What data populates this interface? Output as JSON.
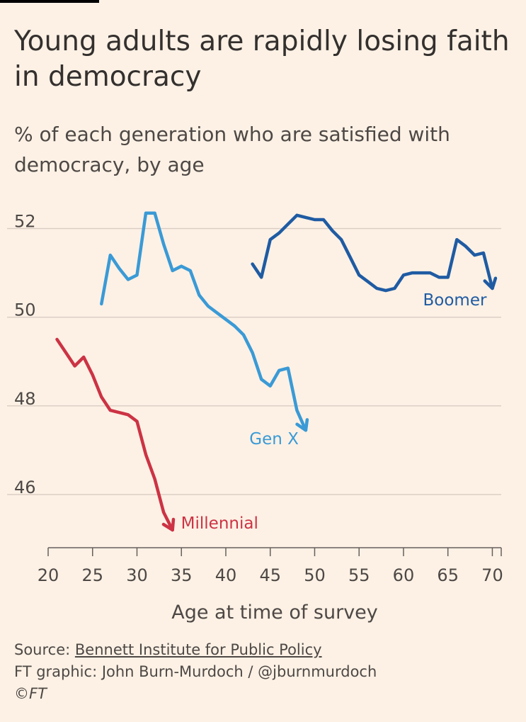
{
  "title": "Young adults are rapidly losing faith in democracy",
  "subtitle": "% of each generation who are satisfied with democracy, by age",
  "source_prefix": "Source: ",
  "source_link": "Bennett Institute for Public Policy",
  "credit": "FT graphic: John Burn-Murdoch / @jburnmurdoch",
  "copyright": "©FT",
  "colors": {
    "background": "#fdf1e5",
    "grid": "#d9cdc4",
    "axis": "#66605c",
    "millennial": "#cc3344",
    "genx": "#3a9ad6",
    "boomer": "#1f5ba3"
  },
  "chart_data": {
    "type": "line",
    "title": "Young adults are rapidly losing faith in democracy",
    "xlabel": "Age at time of survey",
    "ylabel": "% of each generation who are satisfied with democracy",
    "xlim": [
      20,
      71
    ],
    "ylim": [
      44.8,
      53
    ],
    "x_ticks": [
      20,
      25,
      30,
      35,
      40,
      45,
      50,
      55,
      60,
      65,
      70
    ],
    "y_ticks": [
      46,
      48,
      50,
      52
    ],
    "grid": true,
    "series": [
      {
        "name": "Millennial",
        "color": "#cc3344",
        "x": [
          21,
          22,
          23,
          24,
          25,
          26,
          27,
          28,
          29,
          30,
          31,
          32,
          33,
          34
        ],
        "y": [
          49.5,
          49.2,
          48.9,
          49.1,
          48.7,
          48.2,
          47.9,
          47.85,
          47.8,
          47.65,
          46.9,
          46.35,
          45.6,
          45.2
        ]
      },
      {
        "name": "Gen X",
        "color": "#3a9ad6",
        "x": [
          26,
          27,
          28,
          29,
          30,
          31,
          32,
          33,
          34,
          35,
          36,
          37,
          38,
          39,
          40,
          41,
          42,
          43,
          44,
          45,
          46,
          47,
          48,
          49
        ],
        "y": [
          50.3,
          51.4,
          51.1,
          50.85,
          50.95,
          52.35,
          52.35,
          51.65,
          51.05,
          51.15,
          51.05,
          50.5,
          50.25,
          50.1,
          49.95,
          49.8,
          49.6,
          49.2,
          48.6,
          48.45,
          48.8,
          48.85,
          47.9,
          47.45
        ]
      },
      {
        "name": "Boomer",
        "color": "#1f5ba3",
        "x": [
          43,
          44,
          45,
          46,
          47,
          48,
          49,
          50,
          51,
          52,
          53,
          54,
          55,
          56,
          57,
          58,
          59,
          60,
          61,
          62,
          63,
          64,
          65,
          66,
          67,
          68,
          69,
          70
        ],
        "y": [
          51.2,
          50.9,
          51.75,
          51.9,
          52.1,
          52.3,
          52.25,
          52.2,
          52.2,
          51.95,
          51.75,
          51.35,
          50.95,
          50.8,
          50.65,
          50.6,
          50.65,
          50.95,
          51.0,
          51.0,
          51.0,
          50.9,
          50.9,
          51.75,
          51.6,
          51.4,
          51.45,
          50.65
        ]
      }
    ],
    "annotations": [
      {
        "series": "Millennial",
        "label": "Millennial"
      },
      {
        "series": "Gen X",
        "label": "Gen X"
      },
      {
        "series": "Boomer",
        "label": "Boomer"
      }
    ]
  }
}
